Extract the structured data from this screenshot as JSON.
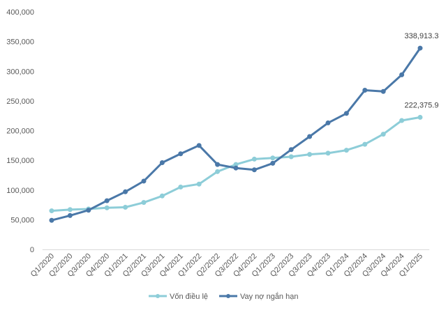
{
  "chart_data": {
    "type": "line",
    "title": "",
    "xlabel": "",
    "ylabel": "",
    "categories": [
      "Q1/2020",
      "Q2/2020",
      "Q3/2020",
      "Q4/2020",
      "Q1/2021",
      "Q2/2021",
      "Q3/2021",
      "Q4/2021",
      "Q1/2022",
      "Q2/2022",
      "Q3/2022",
      "Q4/2022",
      "Q1/2023",
      "Q2/2023",
      "Q3/2023",
      "Q4/2023",
      "Q1/2024",
      "Q2/2024",
      "Q3/2024",
      "Q4/2024",
      "Q1/2025"
    ],
    "ylim": [
      0,
      400000
    ],
    "yticks": [
      0,
      50000,
      100000,
      150000,
      200000,
      250000,
      300000,
      350000,
      400000
    ],
    "ytick_labels": [
      "0",
      "50,000",
      "100,000",
      "150,000",
      "200,000",
      "250,000",
      "300,000",
      "350,000",
      "400,000"
    ],
    "grid": false,
    "legend_position": "bottom",
    "series": [
      {
        "name": "Vốn điều lệ",
        "color": "#8DCDD8",
        "values": [
          65000,
          67000,
          68000,
          70000,
          71000,
          79000,
          90000,
          105000,
          110000,
          131000,
          143000,
          152000,
          154000,
          156000,
          160000,
          162000,
          167000,
          177000,
          194000,
          217000,
          222375.9
        ]
      },
      {
        "name": "Vay nợ ngắn hạn",
        "color": "#4A78A8",
        "values": [
          49000,
          57000,
          66000,
          82000,
          97000,
          115000,
          146000,
          161000,
          175000,
          143000,
          137000,
          134000,
          145000,
          168000,
          190000,
          213000,
          229000,
          268000,
          266000,
          294000,
          338913.3
        ]
      }
    ],
    "annotations": [
      {
        "series": 1,
        "index": 20,
        "text": "338,913.3"
      },
      {
        "series": 0,
        "index": 20,
        "text": "222,375.9"
      }
    ]
  }
}
